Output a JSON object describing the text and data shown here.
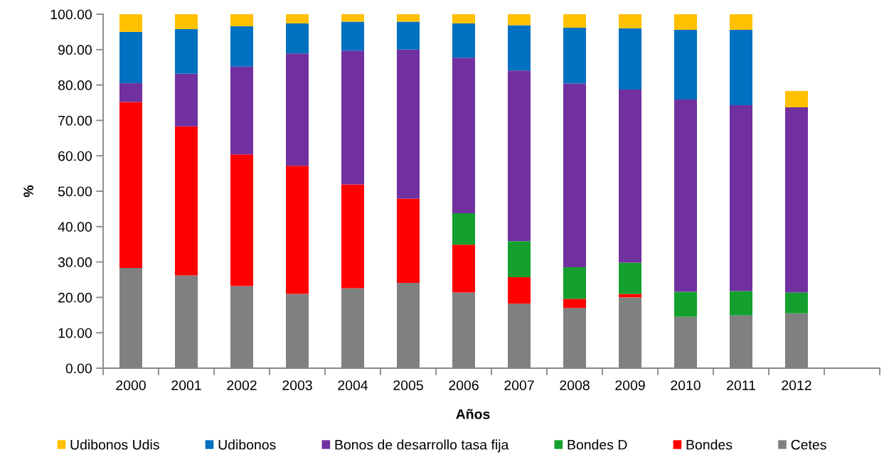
{
  "chart_data": {
    "type": "bar",
    "stacked": true,
    "xlabel": "Años",
    "ylabel": "%",
    "categories": [
      "2000",
      "2001",
      "2002",
      "2003",
      "2004",
      "2005",
      "2006",
      "2007",
      "2008",
      "2009",
      "2010",
      "2011",
      "2012",
      null
    ],
    "ylim": [
      0,
      100
    ],
    "yticks": [
      {
        "value": 0,
        "label": "0.00"
      },
      {
        "value": 10,
        "label": "10.00"
      },
      {
        "value": 20,
        "label": "20.00"
      },
      {
        "value": 30,
        "label": "30.00"
      },
      {
        "value": 40,
        "label": "40.00"
      },
      {
        "value": 50,
        "label": "50.00"
      },
      {
        "value": 60,
        "label": "60.00"
      },
      {
        "value": 70,
        "label": "70.00"
      },
      {
        "value": 80,
        "label": "80.00"
      },
      {
        "value": 90,
        "label": "90.00"
      },
      {
        "value": 100,
        "label": "100.00"
      }
    ],
    "legend": "bottom",
    "series": [
      {
        "name": "Cetes",
        "color": "#808080",
        "values": [
          28.3,
          26.2,
          23.2,
          21.0,
          22.6,
          24.1,
          21.4,
          18.2,
          17.0,
          20.0,
          14.5,
          14.9,
          15.5,
          null
        ]
      },
      {
        "name": "Bondes",
        "color": "#ff0000",
        "values": [
          46.9,
          42.1,
          37.2,
          36.2,
          29.3,
          23.8,
          13.5,
          7.5,
          2.6,
          1.0,
          null,
          null,
          null,
          null
        ]
      },
      {
        "name": "Bondes D",
        "color": "#14a02e",
        "values": [
          null,
          null,
          null,
          null,
          null,
          null,
          8.9,
          10.2,
          8.9,
          8.8,
          7.1,
          6.9,
          5.9,
          null
        ]
      },
      {
        "name": "Bonos de desarrollo tasa fija",
        "color": "#7030a0",
        "values": [
          5.3,
          14.9,
          24.8,
          31.7,
          37.8,
          42.1,
          43.9,
          48.2,
          51.9,
          48.9,
          54.3,
          52.5,
          52.3,
          null
        ]
      },
      {
        "name": "Udibonos",
        "color": "#0070c0",
        "values": [
          14.5,
          12.6,
          11.4,
          8.5,
          8.2,
          7.9,
          9.7,
          12.8,
          15.8,
          17.3,
          19.7,
          21.3,
          null,
          null
        ]
      },
      {
        "name": "Udibonos Udis",
        "color": "#ffc000",
        "values": [
          5.0,
          4.2,
          3.4,
          2.6,
          2.1,
          2.1,
          2.6,
          3.1,
          3.8,
          4.0,
          4.4,
          4.4,
          4.6,
          null
        ]
      }
    ]
  }
}
